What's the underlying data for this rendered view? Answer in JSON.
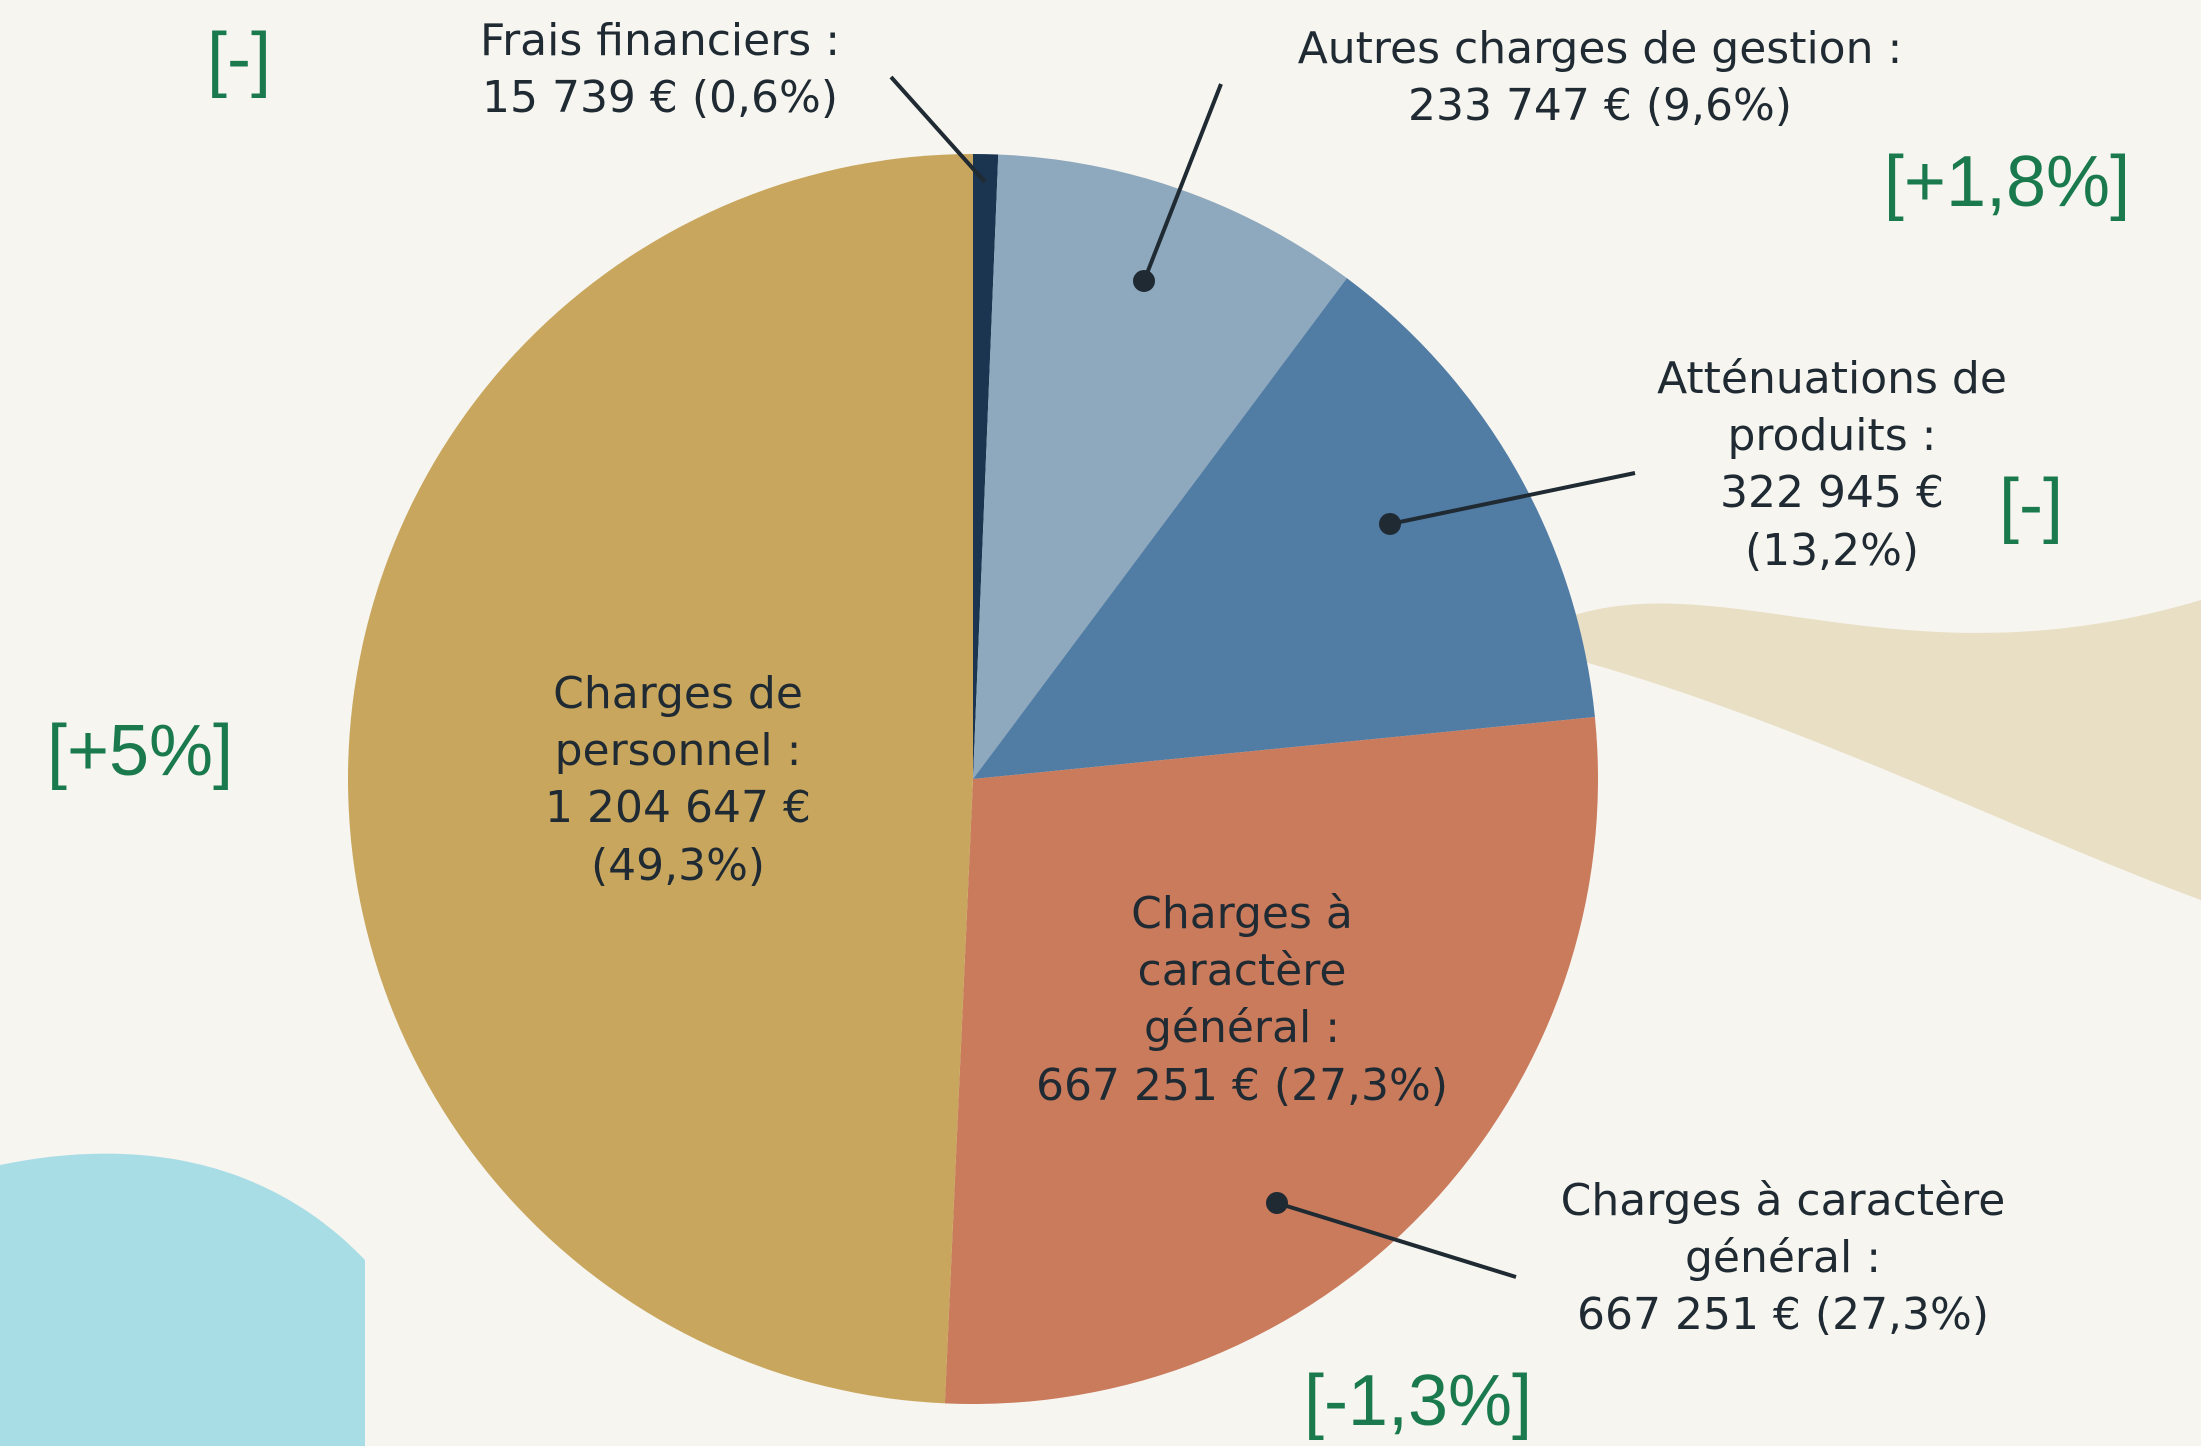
{
  "chart_data": {
    "type": "pie",
    "categories": [
      "Frais financiers :",
      "Autres charges de gestion :",
      "Atténuations de produits :",
      "Charges à caractère général :",
      "Charges de personnel :"
    ],
    "values": [
      15739,
      233747,
      322945,
      667251,
      1204647
    ],
    "value_labels": [
      "15 739 € (0,6%)",
      "233 747 € (9,6%)",
      "322 945 € (13,2%)",
      "667 251 € (27,3%)",
      "1 204 647 € (49,3%)"
    ],
    "colors": [
      "#1b3550",
      "#8ea8bd",
      "#517ca4",
      "#c97b5c",
      "#c9a65d"
    ],
    "changes": [
      "[-]",
      "[+1,8%]",
      "[-]",
      "[-1,3%]",
      "[+5%]"
    ]
  }
}
